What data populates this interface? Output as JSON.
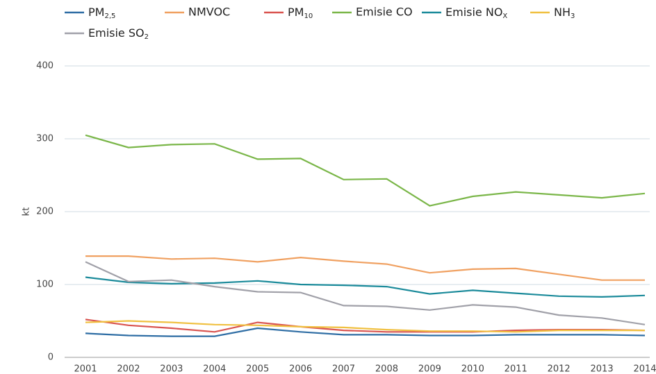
{
  "chart_data": {
    "type": "line",
    "y_label": "kt",
    "categories": [
      "2001",
      "2002",
      "2003",
      "2004",
      "2005",
      "2006",
      "2007",
      "2008",
      "2009",
      "2010",
      "2011",
      "2012",
      "2013",
      "2014"
    ],
    "series": [
      {
        "name": "PM2,5",
        "color": "#2e6da4",
        "values": [
          33,
          30,
          29,
          29,
          40,
          35,
          31,
          31,
          30,
          30,
          31,
          31,
          31,
          30
        ]
      },
      {
        "name": "NMVOC",
        "color": "#f0a060",
        "values": [
          139,
          139,
          135,
          136,
          131,
          137,
          132,
          128,
          116,
          121,
          122,
          114,
          106,
          106
        ]
      },
      {
        "name": "PM10",
        "color": "#d9534f",
        "values": [
          52,
          44,
          40,
          35,
          48,
          42,
          37,
          35,
          35,
          35,
          37,
          38,
          38,
          37
        ]
      },
      {
        "name": "Emisie CO",
        "color": "#7ab648",
        "values": [
          305,
          288,
          292,
          293,
          272,
          273,
          244,
          245,
          208,
          221,
          227,
          223,
          219,
          225
        ]
      },
      {
        "name": "Emisie NOX",
        "color": "#1a8a9a",
        "values": [
          110,
          103,
          101,
          102,
          105,
          100,
          99,
          97,
          87,
          92,
          88,
          84,
          83,
          85
        ]
      },
      {
        "name": "NH3",
        "color": "#f0c040",
        "values": [
          48,
          50,
          48,
          45,
          44,
          42,
          41,
          38,
          36,
          36,
          35,
          37,
          37,
          37
        ]
      },
      {
        "name": "Emisie SO2",
        "color": "#a0a0a8",
        "values": [
          131,
          104,
          106,
          97,
          90,
          89,
          71,
          70,
          65,
          72,
          69,
          58,
          54,
          45
        ]
      }
    ],
    "ylim": [
      0,
      400
    ],
    "yticks": [
      0,
      100,
      200,
      300,
      400
    ],
    "grid": true
  }
}
